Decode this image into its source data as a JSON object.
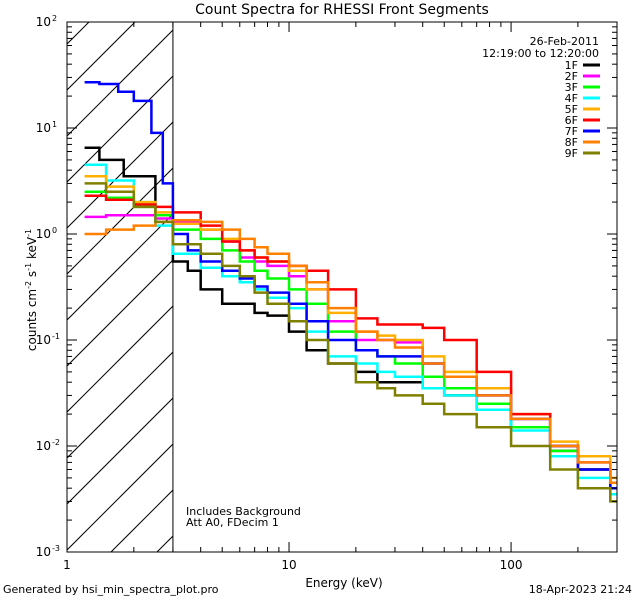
{
  "chart_data": {
    "type": "line",
    "title": "Count Spectra for RHESSI Front Segments",
    "xlabel": "Energy (keV)",
    "ylabel_main": "counts cm",
    "ylabel_exp1": "-2",
    "ylabel_mid": " s",
    "ylabel_exp2": "-1",
    "ylabel_end": " keV",
    "ylabel_exp3": "-1",
    "x_scale": "log",
    "y_scale": "log",
    "xlim": [
      1,
      300
    ],
    "ylim": [
      0.001,
      100
    ],
    "x_major_ticks": [
      {
        "value": 1,
        "label": "1"
      },
      {
        "value": 10,
        "label": "10"
      },
      {
        "value": 100,
        "label": "100"
      }
    ],
    "y_major_ticks": [
      {
        "value": 0.001,
        "base": "10",
        "exp": "-3"
      },
      {
        "value": 0.01,
        "base": "10",
        "exp": "-2"
      },
      {
        "value": 0.1,
        "base": "10",
        "exp": "-1"
      },
      {
        "value": 1,
        "base": "10",
        "exp": "0"
      },
      {
        "value": 10,
        "base": "10",
        "exp": "1"
      },
      {
        "value": 100,
        "base": "10",
        "exp": "2"
      }
    ],
    "excluded_region_max_keV": 3,
    "date": "26-Feb-2011",
    "time_range": "12:19:00 to 12:20:00",
    "annotation_lines": [
      "Includes Background",
      "Att A0, FDecim 1"
    ],
    "legend_position": "top-right",
    "series": [
      {
        "name": "1F",
        "color": "#000000",
        "points": [
          [
            1.2,
            6.5
          ],
          [
            1.4,
            5
          ],
          [
            1.8,
            3.5
          ],
          [
            2.5,
            1.5
          ],
          [
            3,
            0.55
          ],
          [
            3.5,
            0.45
          ],
          [
            4,
            0.3
          ],
          [
            5,
            0.22
          ],
          [
            6,
            0.22
          ],
          [
            7,
            0.18
          ],
          [
            8,
            0.17
          ],
          [
            10,
            0.12
          ],
          [
            12,
            0.08
          ],
          [
            15,
            0.06
          ],
          [
            20,
            0.05
          ],
          [
            25,
            0.04
          ],
          [
            30,
            0.04
          ],
          [
            40,
            0.035
          ],
          [
            50,
            0.03
          ],
          [
            70,
            0.022
          ],
          [
            100,
            0.015
          ],
          [
            150,
            0.009
          ],
          [
            200,
            0.006
          ],
          [
            280,
            0.004
          ]
        ]
      },
      {
        "name": "2F",
        "color": "#ff00ff",
        "points": [
          [
            1.2,
            1.45
          ],
          [
            1.5,
            1.5
          ],
          [
            2,
            1.5
          ],
          [
            2.5,
            1.4
          ],
          [
            3,
            1.3
          ],
          [
            4,
            1.1
          ],
          [
            5,
            0.85
          ],
          [
            6,
            0.6
          ],
          [
            7,
            0.55
          ],
          [
            8,
            0.5
          ],
          [
            10,
            0.4
          ],
          [
            12,
            0.3
          ],
          [
            15,
            0.15
          ],
          [
            20,
            0.1
          ],
          [
            25,
            0.1
          ],
          [
            30,
            0.095
          ],
          [
            40,
            0.06
          ],
          [
            50,
            0.045
          ],
          [
            70,
            0.03
          ],
          [
            100,
            0.018
          ],
          [
            150,
            0.01
          ],
          [
            200,
            0.007
          ],
          [
            280,
            0.0045
          ]
        ]
      },
      {
        "name": "3F",
        "color": "#00ff00",
        "points": [
          [
            1.2,
            2.5
          ],
          [
            1.5,
            2.2
          ],
          [
            2,
            1.8
          ],
          [
            2.5,
            1.5
          ],
          [
            3,
            1.1
          ],
          [
            4,
            0.9
          ],
          [
            5,
            0.7
          ],
          [
            6,
            0.55
          ],
          [
            7,
            0.45
          ],
          [
            8,
            0.38
          ],
          [
            10,
            0.3
          ],
          [
            12,
            0.22
          ],
          [
            15,
            0.12
          ],
          [
            20,
            0.08
          ],
          [
            25,
            0.07
          ],
          [
            30,
            0.06
          ],
          [
            40,
            0.045
          ],
          [
            50,
            0.035
          ],
          [
            70,
            0.025
          ],
          [
            100,
            0.015
          ],
          [
            150,
            0.009
          ],
          [
            200,
            0.006
          ],
          [
            280,
            0.004
          ]
        ]
      },
      {
        "name": "4F",
        "color": "#00ffff",
        "points": [
          [
            1.2,
            4.5
          ],
          [
            1.5,
            3.2
          ],
          [
            2,
            2
          ],
          [
            2.5,
            1.2
          ],
          [
            3,
            0.65
          ],
          [
            4,
            0.48
          ],
          [
            5,
            0.4
          ],
          [
            6,
            0.35
          ],
          [
            7,
            0.3
          ],
          [
            8,
            0.25
          ],
          [
            10,
            0.2
          ],
          [
            12,
            0.12
          ],
          [
            15,
            0.07
          ],
          [
            20,
            0.06
          ],
          [
            25,
            0.05
          ],
          [
            30,
            0.045
          ],
          [
            40,
            0.035
          ],
          [
            50,
            0.03
          ],
          [
            70,
            0.022
          ],
          [
            100,
            0.014
          ],
          [
            150,
            0.008
          ],
          [
            200,
            0.005
          ],
          [
            280,
            0.0035
          ]
        ]
      },
      {
        "name": "5F",
        "color": "#ffb000",
        "points": [
          [
            1.2,
            3.5
          ],
          [
            1.5,
            2.8
          ],
          [
            2,
            2
          ],
          [
            2.5,
            1.6
          ],
          [
            3,
            1.25
          ],
          [
            4,
            1.1
          ],
          [
            5,
            0.9
          ],
          [
            6,
            0.7
          ],
          [
            7,
            0.6
          ],
          [
            8,
            0.55
          ],
          [
            10,
            0.45
          ],
          [
            12,
            0.3
          ],
          [
            15,
            0.18
          ],
          [
            20,
            0.12
          ],
          [
            25,
            0.11
          ],
          [
            30,
            0.1
          ],
          [
            40,
            0.07
          ],
          [
            50,
            0.05
          ],
          [
            70,
            0.035
          ],
          [
            100,
            0.02
          ],
          [
            150,
            0.011
          ],
          [
            200,
            0.008
          ],
          [
            280,
            0.005
          ]
        ]
      },
      {
        "name": "6F",
        "color": "#ff0000",
        "points": [
          [
            1.2,
            2.3
          ],
          [
            1.5,
            2.1
          ],
          [
            2,
            1.9
          ],
          [
            2.5,
            1.8
          ],
          [
            3,
            1.6
          ],
          [
            4,
            1.2
          ],
          [
            5,
            0.85
          ],
          [
            6,
            0.7
          ],
          [
            7,
            0.6
          ],
          [
            8,
            0.55
          ],
          [
            10,
            0.5
          ],
          [
            12,
            0.45
          ],
          [
            15,
            0.3
          ],
          [
            20,
            0.16
          ],
          [
            25,
            0.14
          ],
          [
            30,
            0.14
          ],
          [
            40,
            0.13
          ],
          [
            50,
            0.1
          ],
          [
            70,
            0.05
          ],
          [
            100,
            0.02
          ],
          [
            150,
            0.01
          ],
          [
            200,
            0.006
          ],
          [
            280,
            0.004
          ]
        ]
      },
      {
        "name": "7F",
        "color": "#0000ff",
        "points": [
          [
            1.2,
            27
          ],
          [
            1.4,
            26
          ],
          [
            1.7,
            22
          ],
          [
            2,
            18
          ],
          [
            2.4,
            9
          ],
          [
            2.7,
            3
          ],
          [
            3,
            1
          ],
          [
            3.5,
            0.7
          ],
          [
            4,
            0.55
          ],
          [
            5,
            0.45
          ],
          [
            6,
            0.38
          ],
          [
            7,
            0.32
          ],
          [
            8,
            0.28
          ],
          [
            10,
            0.22
          ],
          [
            12,
            0.15
          ],
          [
            15,
            0.1
          ],
          [
            20,
            0.08
          ],
          [
            25,
            0.07
          ],
          [
            30,
            0.07
          ],
          [
            40,
            0.06
          ],
          [
            50,
            0.045
          ],
          [
            70,
            0.03
          ],
          [
            100,
            0.018
          ],
          [
            150,
            0.01
          ],
          [
            200,
            0.006
          ],
          [
            280,
            0.004
          ]
        ]
      },
      {
        "name": "8F",
        "color": "#ff8000",
        "points": [
          [
            1.2,
            1.0
          ],
          [
            1.5,
            1.1
          ],
          [
            2,
            1.2
          ],
          [
            2.5,
            1.3
          ],
          [
            3,
            1.35
          ],
          [
            4,
            1.3
          ],
          [
            5,
            1.1
          ],
          [
            6,
            0.9
          ],
          [
            7,
            0.75
          ],
          [
            8,
            0.65
          ],
          [
            10,
            0.5
          ],
          [
            12,
            0.35
          ],
          [
            15,
            0.2
          ],
          [
            20,
            0.12
          ],
          [
            25,
            0.1
          ],
          [
            30,
            0.085
          ],
          [
            40,
            0.06
          ],
          [
            50,
            0.045
          ],
          [
            70,
            0.03
          ],
          [
            100,
            0.018
          ],
          [
            150,
            0.01
          ],
          [
            200,
            0.007
          ],
          [
            280,
            0.0045
          ]
        ]
      },
      {
        "name": "9F",
        "color": "#808000",
        "points": [
          [
            1.2,
            3.0
          ],
          [
            1.5,
            2.5
          ],
          [
            2,
            1.8
          ],
          [
            2.5,
            1.3
          ],
          [
            3,
            0.8
          ],
          [
            4,
            0.65
          ],
          [
            5,
            0.5
          ],
          [
            6,
            0.4
          ],
          [
            7,
            0.28
          ],
          [
            8,
            0.22
          ],
          [
            10,
            0.15
          ],
          [
            12,
            0.1
          ],
          [
            15,
            0.06
          ],
          [
            20,
            0.04
          ],
          [
            25,
            0.035
          ],
          [
            30,
            0.03
          ],
          [
            40,
            0.025
          ],
          [
            50,
            0.02
          ],
          [
            70,
            0.015
          ],
          [
            100,
            0.01
          ],
          [
            150,
            0.006
          ],
          [
            200,
            0.004
          ],
          [
            280,
            0.003
          ]
        ]
      }
    ]
  },
  "footer": {
    "left": "Generated by hsi_min_spectra_plot.pro",
    "right": "18-Apr-2023 21:24"
  }
}
